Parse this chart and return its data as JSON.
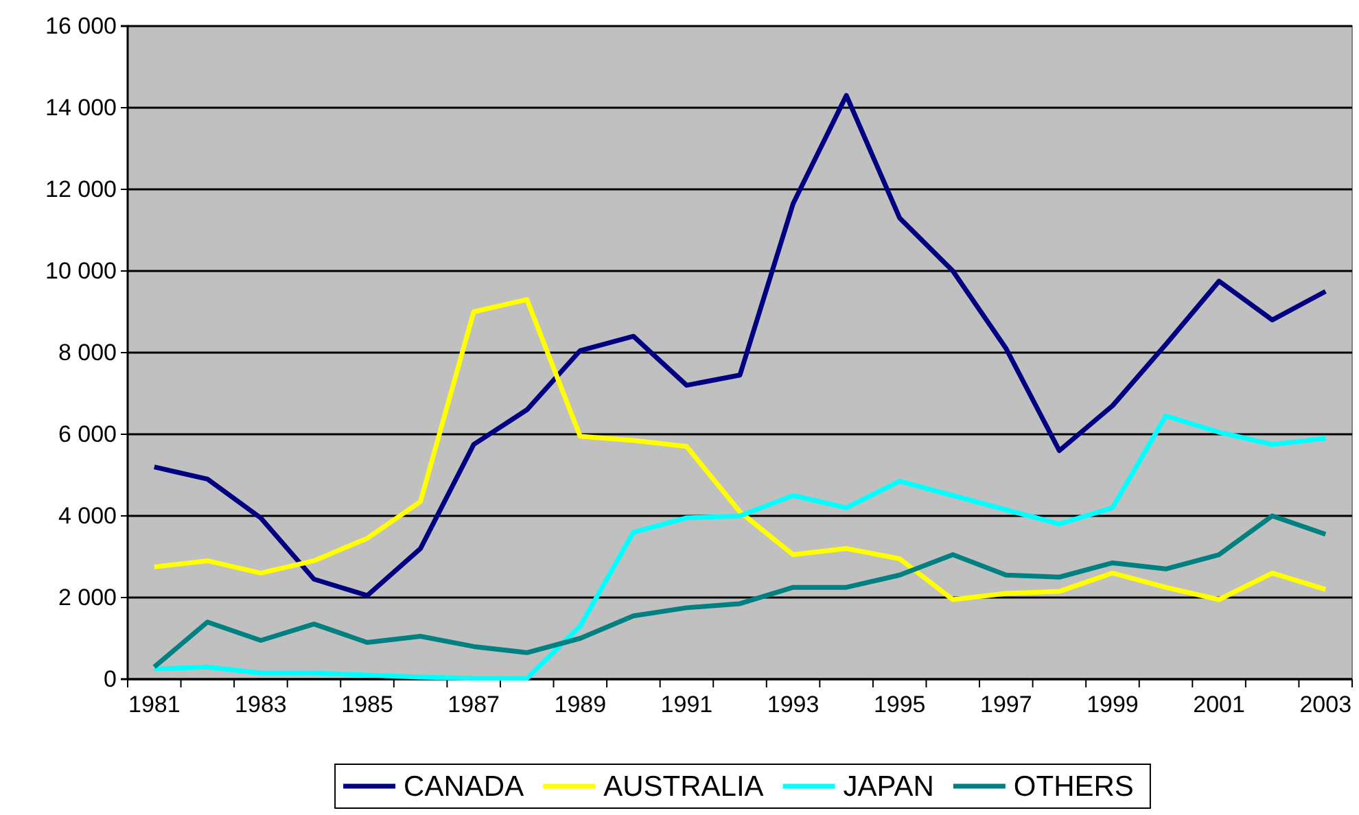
{
  "chart_data": {
    "type": "line",
    "categories": [
      "1981",
      null,
      "1983",
      null,
      "1985",
      null,
      "1987",
      null,
      "1989",
      null,
      "1991",
      null,
      "1993",
      null,
      "1995",
      null,
      "1997",
      null,
      "1999",
      null,
      "2001",
      null,
      "2003"
    ],
    "series": [
      {
        "name": "CANADA",
        "color": "#000080",
        "values": [
          5200,
          4900,
          3950,
          2450,
          2050,
          3200,
          5750,
          6600,
          8050,
          8400,
          7200,
          7450,
          11650,
          14300,
          11300,
          10000,
          8100,
          5600,
          6700,
          8200,
          9750,
          8800,
          9500
        ]
      },
      {
        "name": "AUSTRALIA",
        "color": "#ffff00",
        "values": [
          2750,
          2900,
          2600,
          2900,
          3450,
          4350,
          9000,
          9300,
          5950,
          5850,
          5700,
          4100,
          3050,
          3200,
          2950,
          1950,
          2100,
          2150,
          2600,
          2250,
          1950,
          2600,
          2200
        ]
      },
      {
        "name": "JAPAN",
        "color": "#00ffff",
        "values": [
          250,
          300,
          150,
          150,
          100,
          50,
          20,
          20,
          1300,
          3600,
          3950,
          4000,
          4500,
          4200,
          4850,
          4500,
          4150,
          3800,
          4200,
          6450,
          6050,
          5750,
          5900
        ]
      },
      {
        "name": "OTHERS",
        "color": "#008080",
        "values": [
          300,
          1400,
          950,
          1350,
          900,
          1050,
          800,
          650,
          1000,
          1550,
          1750,
          1850,
          2250,
          2250,
          2550,
          3050,
          2550,
          2500,
          2850,
          2700,
          3050,
          4000,
          3550
        ]
      }
    ],
    "ylim": [
      0,
      16000
    ],
    "yticks": [
      0,
      {
        "value": 2000,
        "label": "2 000"
      },
      {
        "value": 4000,
        "label": "4 000"
      },
      {
        "value": 6000,
        "label": "6 000"
      },
      {
        "value": 8000,
        "label": "8 000"
      },
      {
        "value": 10000,
        "label": "10 000"
      },
      {
        "value": 12000,
        "label": "12 000"
      },
      {
        "value": 14000,
        "label": "14 000"
      },
      {
        "value": 16000,
        "label": "16 000"
      }
    ],
    "grid": "y",
    "legend": "bottom",
    "marker": "none",
    "line_style": "solid"
  }
}
